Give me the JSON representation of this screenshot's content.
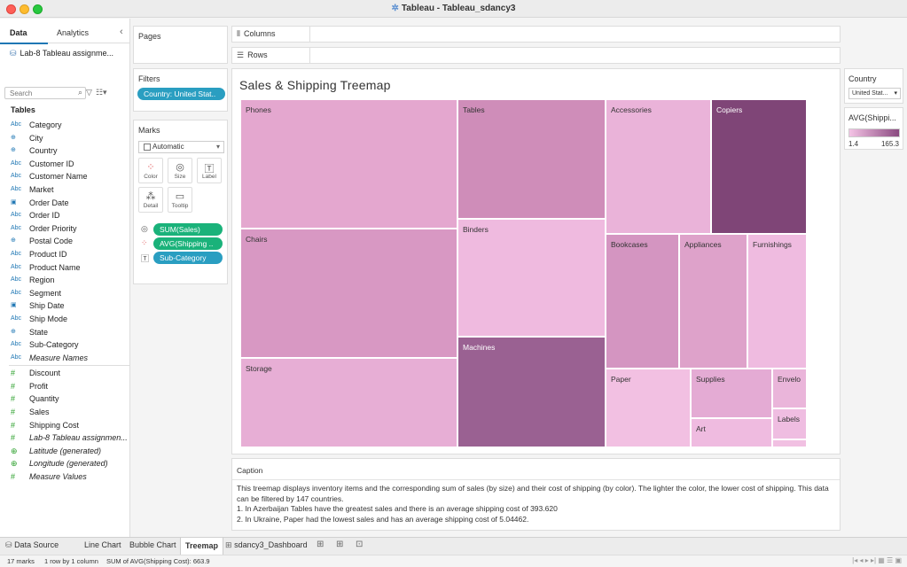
{
  "window": {
    "title": "Tableau - Tableau_sdancy3"
  },
  "left_pane": {
    "tabs": [
      "Data",
      "Analytics"
    ],
    "datasource": "Lab-8 Tableau assignme...",
    "search_placeholder": "Search",
    "tables_header": "Tables",
    "dimensions": [
      {
        "type": "Abc",
        "name": "Category"
      },
      {
        "type": "geo",
        "name": "City"
      },
      {
        "type": "geo",
        "name": "Country"
      },
      {
        "type": "Abc",
        "name": "Customer ID"
      },
      {
        "type": "Abc",
        "name": "Customer Name"
      },
      {
        "type": "Abc",
        "name": "Market"
      },
      {
        "type": "date",
        "name": "Order Date"
      },
      {
        "type": "Abc",
        "name": "Order ID"
      },
      {
        "type": "Abc",
        "name": "Order Priority"
      },
      {
        "type": "geo",
        "name": "Postal Code"
      },
      {
        "type": "Abc",
        "name": "Product ID"
      },
      {
        "type": "Abc",
        "name": "Product Name"
      },
      {
        "type": "Abc",
        "name": "Region"
      },
      {
        "type": "Abc",
        "name": "Segment"
      },
      {
        "type": "date",
        "name": "Ship Date"
      },
      {
        "type": "Abc",
        "name": "Ship Mode"
      },
      {
        "type": "geo",
        "name": "State"
      },
      {
        "type": "Abc",
        "name": "Sub-Category"
      },
      {
        "type": "Abc",
        "name": "Measure Names",
        "italic": true
      }
    ],
    "measures": [
      {
        "type": "#",
        "name": "Discount"
      },
      {
        "type": "#",
        "name": "Profit"
      },
      {
        "type": "#",
        "name": "Quantity"
      },
      {
        "type": "#",
        "name": "Sales"
      },
      {
        "type": "#",
        "name": "Shipping Cost"
      },
      {
        "type": "#",
        "name": "Lab-8 Tableau assignmen...",
        "italic": true
      },
      {
        "type": "geo-m",
        "name": "Latitude (generated)",
        "italic": true
      },
      {
        "type": "geo-m",
        "name": "Longitude (generated)",
        "italic": true
      },
      {
        "type": "#",
        "name": "Measure Values",
        "italic": true
      }
    ]
  },
  "shelves": {
    "pages": "Pages",
    "filters": "Filters",
    "filter_pill": "Country: United Stat..",
    "columns": "Columns",
    "rows": "Rows",
    "marks": "Marks",
    "mark_type": "Automatic",
    "mark_buttons": [
      "Color",
      "Size",
      "Label",
      "Detail",
      "Tooltip"
    ],
    "mark_pills": [
      "SUM(Sales)",
      "AVG(Shipping ..",
      "Sub-Category"
    ]
  },
  "viz": {
    "title": "Sales & Shipping Treemap"
  },
  "chart_data": {
    "type": "treemap",
    "title": "Sales & Shipping Treemap",
    "size_measure": "SUM(Sales)",
    "color_measure": "AVG(Shipping Cost)",
    "color_range": [
      1.4,
      165.3
    ],
    "color_low": "#f4c3e5",
    "color_high": "#8a4a80",
    "tiles": [
      {
        "label": "Phones",
        "color": "#e4a7cf"
      },
      {
        "label": "Chairs",
        "color": "#d898c3"
      },
      {
        "label": "Storage",
        "color": "#e7aed5"
      },
      {
        "label": "Tables",
        "color": "#cf8db9"
      },
      {
        "label": "Binders",
        "color": "#efbadf"
      },
      {
        "label": "Machines",
        "color": "#9a6192"
      },
      {
        "label": "Accessories",
        "color": "#eab3d9"
      },
      {
        "label": "Copiers",
        "color": "#7f4577"
      },
      {
        "label": "Bookcases",
        "color": "#d495c1"
      },
      {
        "label": "Appliances",
        "color": "#dea2ca"
      },
      {
        "label": "Furnishings",
        "color": "#efbbe0"
      },
      {
        "label": "Paper",
        "color": "#f2c0e2"
      },
      {
        "label": "Supplies",
        "color": "#e4abd4"
      },
      {
        "label": "Envelo",
        "color": "#eab5da"
      },
      {
        "label": "Art",
        "color": "#efbbe0"
      },
      {
        "label": "Labels",
        "color": "#efbde1"
      },
      {
        "label": "",
        "color": "#f1c0e2"
      }
    ]
  },
  "caption": {
    "title": "Caption",
    "lines": [
      "This treemap displays inventory items and the corresponding sum of sales (by size) and their cost of shipping (by color). The lighter the color, the lower cost of shipping. This data can be filtered by 147 countries.",
      "1. In Azerbaijan Tables have the greatest sales and there is an average shipping cost of 393.620",
      "2. In Ukraine, Paper had the lowest sales and has an average shipping cost of 5.04462."
    ]
  },
  "legends": {
    "country_title": "Country",
    "country_value": "United Stat...",
    "avg_title": "AVG(Shippi...",
    "avg_min": "1.4",
    "avg_max": "165.3"
  },
  "sheet_tabs": [
    "Data Source",
    "Line Chart",
    "Bubble Chart",
    "Treemap",
    "sdancy3_Dashboard"
  ],
  "status": {
    "marks": "17 marks",
    "rows_cols": "1 row by 1 column",
    "sum": "SUM of AVG(Shipping Cost): 663.9"
  }
}
